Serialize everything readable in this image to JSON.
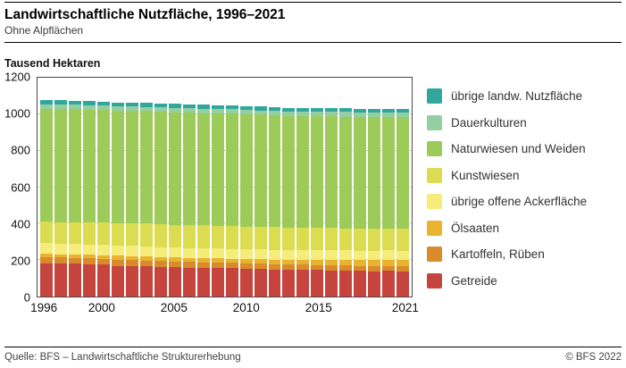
{
  "header": {
    "title": "Landwirtschaftliche Nutzfläche, 1996–2021",
    "subtitle": "Ohne Alpflächen"
  },
  "axis_title": "Tausend Hektaren",
  "footer": {
    "source": "Quelle: BFS – Landwirtschaftliche Strukturerhebung",
    "copyright": "© BFS 2022"
  },
  "chart_data": {
    "type": "bar",
    "stacked": true,
    "title": "Landwirtschaftliche Nutzfläche, 1996–2021",
    "subtitle": "Ohne Alpflächen",
    "ylabel": "Tausend Hektaren",
    "ylim": [
      0,
      1200
    ],
    "yticks": [
      0,
      200,
      400,
      600,
      800,
      1000,
      1200
    ],
    "grid": true,
    "legend_position": "right",
    "x": [
      1996,
      1997,
      1998,
      1999,
      2000,
      2001,
      2002,
      2003,
      2004,
      2005,
      2006,
      2007,
      2008,
      2009,
      2010,
      2011,
      2012,
      2013,
      2014,
      2015,
      2016,
      2017,
      2018,
      2019,
      2020,
      2021
    ],
    "xticks": [
      1996,
      2000,
      2005,
      2010,
      2015,
      2021
    ],
    "series": [
      {
        "key": "getreide",
        "name": "Getreide",
        "color": "#c5443e",
        "values": [
          183,
          180,
          179,
          175,
          174,
          169,
          168,
          166,
          163,
          160,
          158,
          156,
          157,
          155,
          152,
          150,
          148,
          145,
          146,
          145,
          144,
          142,
          141,
          139,
          140,
          139
        ]
      },
      {
        "key": "kartoffeln-rueben",
        "name": "Kartoffeln, Rüben",
        "color": "#d98a2b",
        "values": [
          35,
          35,
          34,
          34,
          33,
          33,
          32,
          32,
          32,
          31,
          31,
          31,
          31,
          31,
          30,
          30,
          30,
          30,
          29,
          29,
          29,
          28,
          28,
          28,
          28,
          28
        ]
      },
      {
        "key": "oelsaaten",
        "name": "Ölsaaten",
        "color": "#e8b430",
        "values": [
          17,
          17,
          18,
          19,
          20,
          21,
          21,
          22,
          22,
          23,
          23,
          22,
          22,
          22,
          23,
          24,
          25,
          26,
          27,
          28,
          29,
          30,
          31,
          32,
          33,
          33
        ]
      },
      {
        "key": "uebrige-offene-ackerflaeche",
        "name": "übrige offene Ackerfläche",
        "color": "#f5ec7a",
        "values": [
          58,
          58,
          57,
          57,
          57,
          56,
          56,
          56,
          55,
          55,
          55,
          55,
          54,
          54,
          54,
          54,
          54,
          53,
          53,
          53,
          53,
          53,
          52,
          52,
          52,
          52
        ]
      },
      {
        "key": "kunstwiesen",
        "name": "Kunstwiesen",
        "color": "#dbdc4f",
        "values": [
          118,
          119,
          120,
          120,
          121,
          122,
          123,
          124,
          125,
          125,
          126,
          126,
          125,
          125,
          124,
          124,
          123,
          123,
          122,
          122,
          121,
          121,
          120,
          120,
          119,
          119
        ]
      },
      {
        "key": "naturwiesen-und-weiden",
        "name": "Naturwiesen und Weiden",
        "color": "#9dcb59",
        "values": [
          620,
          620,
          619,
          619,
          618,
          618,
          618,
          617,
          617,
          617,
          616,
          616,
          616,
          616,
          615,
          615,
          615,
          614,
          614,
          614,
          614,
          613,
          613,
          613,
          612,
          612
        ]
      },
      {
        "key": "dauerkulturen",
        "name": "Dauerkulturen",
        "color": "#93cfa2",
        "values": [
          24,
          24,
          24,
          24,
          24,
          24,
          24,
          24,
          24,
          24,
          24,
          24,
          24,
          24,
          24,
          24,
          24,
          25,
          25,
          25,
          25,
          25,
          25,
          25,
          25,
          25
        ]
      },
      {
        "key": "uebrige-landw-nutzflaeche",
        "name": "übrige landw. Nutzfläche",
        "color": "#31a79b",
        "values": [
          23,
          23,
          23,
          23,
          23,
          22,
          22,
          22,
          22,
          22,
          21,
          21,
          21,
          21,
          21,
          21,
          21,
          20,
          20,
          20,
          20,
          20,
          20,
          20,
          20,
          20
        ]
      }
    ],
    "legend": [
      {
        "key": "uebrige-landw-nutzflaeche",
        "label": "übrige landw. Nutzfläche",
        "color": "#31a79b"
      },
      {
        "key": "dauerkulturen",
        "label": "Dauerkulturen",
        "color": "#93cfa2"
      },
      {
        "key": "naturwiesen-und-weiden",
        "label": "Naturwiesen und Weiden",
        "color": "#9dcb59"
      },
      {
        "key": "kunstwiesen",
        "label": "Kunstwiesen",
        "color": "#dbdc4f"
      },
      {
        "key": "uebrige-offene-ackerflaeche",
        "label": "übrige offene Ackerfläche",
        "color": "#f5ec7a"
      },
      {
        "key": "oelsaaten",
        "label": "Ölsaaten",
        "color": "#e8b430"
      },
      {
        "key": "kartoffeln-rueben",
        "label": "Kartoffeln, Rüben",
        "color": "#d98a2b"
      },
      {
        "key": "getreide",
        "label": "Getreide",
        "color": "#c5443e"
      }
    ]
  }
}
